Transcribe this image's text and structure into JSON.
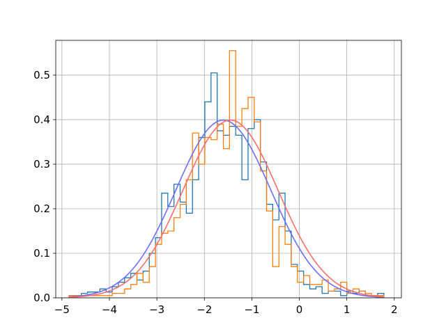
{
  "chart_data": {
    "type": "histogram",
    "title": "",
    "xlabel": "",
    "ylabel": "",
    "xlim": [
      -5.13,
      2.15
    ],
    "ylim": [
      0,
      0.578
    ],
    "grid": true,
    "x_ticks": [
      -5,
      -4,
      -3,
      -2,
      -1,
      0,
      1,
      2
    ],
    "y_ticks": [
      0.0,
      0.1,
      0.2,
      0.3,
      0.4,
      0.5
    ],
    "x_tick_labels": [
      "−5",
      "−4",
      "−3",
      "−2",
      "−1",
      "0",
      "1",
      "2"
    ],
    "y_tick_labels": [
      "0.0",
      "0.1",
      "0.2",
      "0.3",
      "0.4",
      "0.5"
    ],
    "series": [
      {
        "kind": "step-histogram",
        "color": "#1f77b4",
        "bin_edges": [
          -4.85,
          -4.72,
          -4.59,
          -4.46,
          -4.33,
          -4.2,
          -4.07,
          -3.94,
          -3.81,
          -3.68,
          -3.55,
          -3.42,
          -3.29,
          -3.16,
          -3.03,
          -2.9,
          -2.77,
          -2.64,
          -2.51,
          -2.38,
          -2.25,
          -2.12,
          -1.99,
          -1.86,
          -1.73,
          -1.6,
          -1.47,
          -1.34,
          -1.21,
          -1.08,
          -0.95,
          -0.82,
          -0.69,
          -0.56,
          -0.43,
          -0.3,
          -0.17,
          -0.04,
          0.09,
          0.22,
          0.35,
          0.48,
          0.61,
          0.74,
          0.87,
          1.0,
          1.13,
          1.26,
          1.39,
          1.52,
          1.65,
          1.78
        ],
        "values": [
          0.005,
          0.005,
          0.01,
          0.013,
          0.013,
          0.02,
          0.013,
          0.025,
          0.035,
          0.045,
          0.055,
          0.04,
          0.06,
          0.1,
          0.135,
          0.235,
          0.205,
          0.255,
          0.215,
          0.19,
          0.265,
          0.36,
          0.44,
          0.505,
          0.375,
          0.365,
          0.385,
          0.365,
          0.265,
          0.38,
          0.4,
          0.305,
          0.21,
          0.175,
          0.235,
          0.15,
          0.075,
          0.06,
          0.03,
          0.02,
          0.025,
          0.01,
          0.015,
          0.015,
          0.005,
          0.015,
          0.01,
          0.015,
          0.005,
          0.005,
          0.01
        ]
      },
      {
        "kind": "step-histogram",
        "color": "#ff7f0e",
        "bin_edges": [
          -4.85,
          -4.72,
          -4.59,
          -4.46,
          -4.33,
          -4.2,
          -4.07,
          -3.94,
          -3.81,
          -3.68,
          -3.55,
          -3.42,
          -3.29,
          -3.16,
          -3.03,
          -2.9,
          -2.77,
          -2.64,
          -2.51,
          -2.38,
          -2.25,
          -2.12,
          -1.99,
          -1.86,
          -1.73,
          -1.6,
          -1.47,
          -1.34,
          -1.21,
          -1.08,
          -0.95,
          -0.82,
          -0.69,
          -0.56,
          -0.43,
          -0.3,
          -0.17,
          -0.04,
          0.09,
          0.22,
          0.35,
          0.48,
          0.61,
          0.74,
          0.87,
          1.0,
          1.13,
          1.26,
          1.39,
          1.52,
          1.65,
          1.78
        ],
        "values": [
          0.005,
          0.005,
          0.005,
          0.005,
          0.005,
          0.005,
          0.005,
          0.01,
          0.01,
          0.02,
          0.03,
          0.055,
          0.035,
          0.07,
          0.12,
          0.145,
          0.15,
          0.18,
          0.21,
          0.265,
          0.37,
          0.3,
          0.36,
          0.355,
          0.39,
          0.335,
          0.555,
          0.385,
          0.425,
          0.45,
          0.395,
          0.285,
          0.195,
          0.07,
          0.16,
          0.12,
          0.07,
          0.035,
          0.05,
          0.03,
          0.03,
          0.04,
          0.015,
          0.02,
          0.035,
          0.01,
          0.02,
          0.015,
          0.01,
          0.005,
          0.005
        ]
      },
      {
        "kind": "normal-pdf",
        "color": "#6c6cff",
        "mean": -1.6,
        "std": 1.0
      },
      {
        "kind": "normal-pdf",
        "color": "#ff6c6c",
        "mean": -1.45,
        "std": 1.0
      }
    ]
  }
}
